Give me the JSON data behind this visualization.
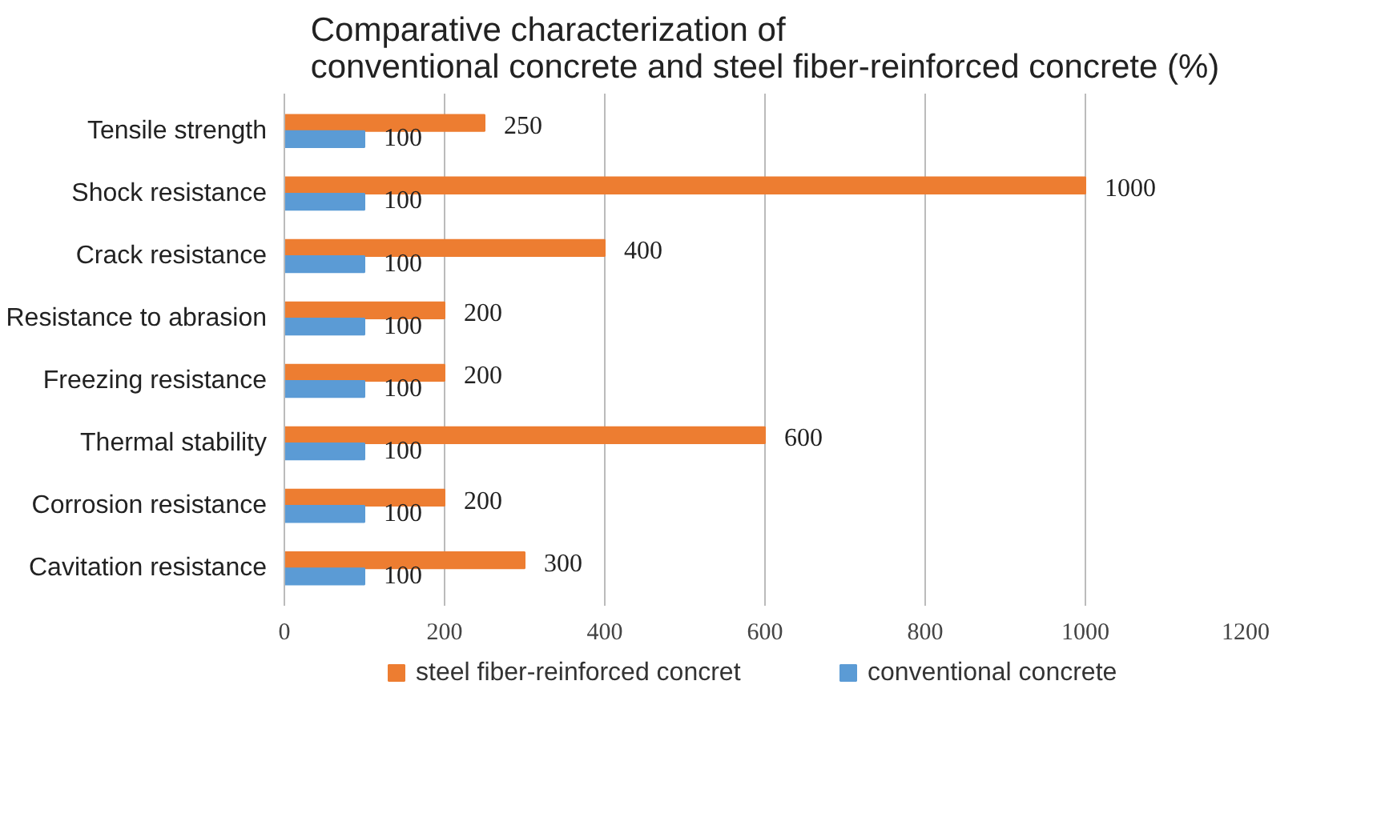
{
  "chart_data": {
    "type": "bar",
    "orientation": "horizontal",
    "title": "Comparative characterization of\nconventional concrete and steel fiber-reinforced concrete (%)",
    "categories": [
      "Tensile strength",
      "Shock resistance",
      "Crack resistance",
      "Resistance to abrasion",
      "Freezing resistance",
      "Thermal stability",
      "Corrosion resistance",
      "Cavitation resistance"
    ],
    "series": [
      {
        "name": "steel fiber-reinforced concret",
        "color": "#ed7d31",
        "values": [
          250,
          1000,
          400,
          200,
          200,
          600,
          200,
          300
        ]
      },
      {
        "name": "conventional concrete",
        "color": "#5b9bd5",
        "values": [
          100,
          100,
          100,
          100,
          100,
          100,
          100,
          100
        ]
      }
    ],
    "xlim": [
      0,
      1200
    ],
    "xticks": [
      0,
      200,
      400,
      600,
      800,
      1000,
      1200
    ],
    "grid": "x",
    "legend": "bottom",
    "data_labels": true
  }
}
